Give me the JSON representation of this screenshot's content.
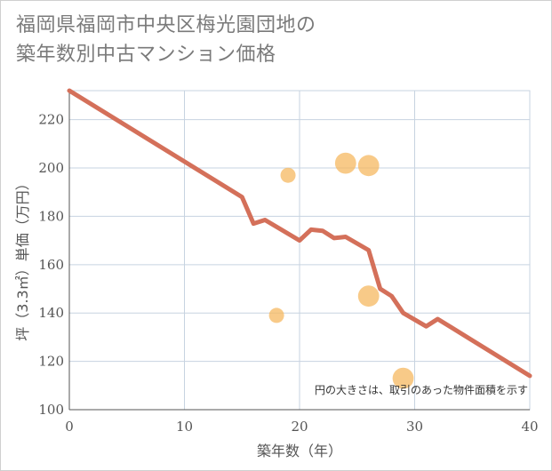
{
  "chart_data": {
    "type": "scatter+line",
    "title_lines": [
      "福岡県福岡市中央区梅光園団地の",
      "築年数別中古マンション価格"
    ],
    "xlabel": "築年数（年）",
    "ylabel": "坪（3.3㎡）単価（万円）",
    "xlim": [
      0,
      40
    ],
    "ylim": [
      100,
      232
    ],
    "x_ticks": [
      0,
      10,
      20,
      30,
      40
    ],
    "y_ticks": [
      100,
      120,
      140,
      160,
      180,
      200,
      220
    ],
    "grid": true,
    "note": "円の大きさは、取引のあった物件面積を示す",
    "series": [
      {
        "name": "trend",
        "kind": "line",
        "color": "#d4705a",
        "points": [
          [
            0,
            232
          ],
          [
            15,
            188
          ],
          [
            16,
            177
          ],
          [
            17,
            178.5
          ],
          [
            20,
            170
          ],
          [
            21,
            174.5
          ],
          [
            22,
            174
          ],
          [
            23,
            171
          ],
          [
            24,
            171.5
          ],
          [
            26,
            166
          ],
          [
            27,
            150
          ],
          [
            28,
            147
          ],
          [
            29,
            140
          ],
          [
            31,
            134.5
          ],
          [
            32,
            137.5
          ],
          [
            40,
            114
          ]
        ]
      },
      {
        "name": "transactions",
        "kind": "bubble",
        "color": "#f5b860",
        "points": [
          {
            "x": 18,
            "y": 139,
            "size": 1
          },
          {
            "x": 19,
            "y": 197,
            "size": 1
          },
          {
            "x": 24,
            "y": 202,
            "size": 1.4
          },
          {
            "x": 26,
            "y": 201,
            "size": 1.4
          },
          {
            "x": 26,
            "y": 147,
            "size": 1.4
          },
          {
            "x": 29,
            "y": 113,
            "size": 1.4
          }
        ]
      }
    ]
  }
}
